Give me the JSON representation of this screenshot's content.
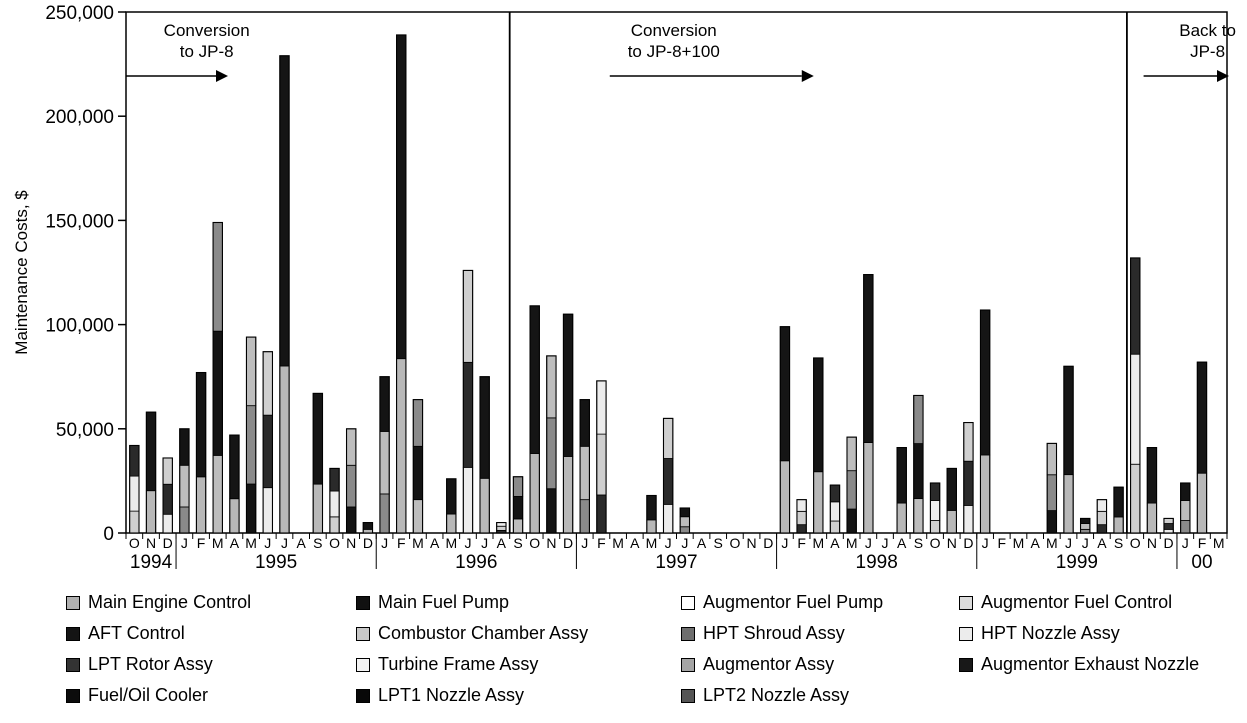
{
  "chart_data": {
    "type": "bar",
    "stacked": true,
    "ylabel": "Maintenance Costs, $",
    "ylim": [
      0,
      250000
    ],
    "yticks": [
      "0",
      "50,000",
      "100,000",
      "150,000",
      "200,000",
      "250,000"
    ],
    "grid": false,
    "month_labels": [
      "O",
      "N",
      "D",
      "J",
      "F",
      "M",
      "A",
      "M",
      "J",
      "J",
      "A",
      "S",
      "O",
      "N",
      "D",
      "J",
      "F",
      "M",
      "A",
      "M",
      "J",
      "J",
      "A",
      "S",
      "O",
      "N",
      "D",
      "J",
      "F",
      "M",
      "A",
      "M",
      "J",
      "J",
      "A",
      "S",
      "O",
      "N",
      "D",
      "J",
      "F",
      "M",
      "A",
      "M",
      "J",
      "J",
      "A",
      "S",
      "O",
      "N",
      "D",
      "J",
      "F",
      "M",
      "A",
      "M",
      "J",
      "J",
      "A",
      "S",
      "O",
      "N",
      "D",
      "J",
      "F",
      "M"
    ],
    "year_labels": [
      {
        "label": "1994",
        "start": 0,
        "end": 3
      },
      {
        "label": "1995",
        "start": 3,
        "end": 15
      },
      {
        "label": "1996",
        "start": 15,
        "end": 27
      },
      {
        "label": "1997",
        "start": 27,
        "end": 39
      },
      {
        "label": "1998",
        "start": 39,
        "end": 51
      },
      {
        "label": "1999",
        "start": 51,
        "end": 63
      },
      {
        "label": "00",
        "start": 63,
        "end": 66
      }
    ],
    "totals": [
      42000,
      58000,
      36000,
      50000,
      77000,
      149000,
      47000,
      94000,
      87000,
      229000,
      0,
      67000,
      31000,
      50000,
      5000,
      75000,
      239000,
      64000,
      0,
      26000,
      126000,
      75000,
      5000,
      27000,
      109000,
      85000,
      105000,
      64000,
      73000,
      0,
      0,
      18000,
      55000,
      12000,
      0,
      0,
      0,
      0,
      0,
      99000,
      16000,
      84000,
      23000,
      46000,
      124000,
      0,
      41000,
      66000,
      24000,
      31000,
      53000,
      107000,
      0,
      0,
      0,
      43000,
      80000,
      7000,
      16000,
      22000,
      132000,
      41000,
      7000,
      24000,
      82000,
      0
    ],
    "annotations": [
      {
        "text": [
          "Conversion",
          "to JP-8"
        ],
        "index": 1
      },
      {
        "text": [
          "Conversion",
          "to JP-8+100"
        ],
        "index": 29
      },
      {
        "text": [
          "Back to",
          "JP-8"
        ],
        "index": 61
      }
    ],
    "period_boundaries": [
      23,
      60
    ],
    "legend": [
      {
        "name": "Main Engine Control",
        "fill": "#b0b0b0"
      },
      {
        "name": "Main Fuel Pump",
        "fill": "#111111"
      },
      {
        "name": "Augmentor Fuel Pump",
        "fill": "#ffffff"
      },
      {
        "name": "Augmentor Fuel Control",
        "fill": "#dcdcdc"
      },
      {
        "name": "AFT Control",
        "fill": "#141414"
      },
      {
        "name": "Combustor Chamber Assy",
        "fill": "#c8c8c8"
      },
      {
        "name": "HPT Shroud Assy",
        "fill": "#6e6e6e"
      },
      {
        "name": "HPT Nozzle Assy",
        "fill": "#ececec"
      },
      {
        "name": "LPT Rotor Assy",
        "fill": "#333333"
      },
      {
        "name": "Turbine Frame Assy",
        "fill": "#f3f3f3"
      },
      {
        "name": "Augmentor Assy",
        "fill": "#a4a4a4"
      },
      {
        "name": "Augmentor Exhaust Nozzle",
        "fill": "#181818"
      },
      {
        "name": "Fuel/Oil Cooler",
        "fill": "#0c0c0c"
      },
      {
        "name": "LPT1 Nozzle Assy",
        "fill": "#080808"
      },
      {
        "name": "LPT2 Nozzle Assy",
        "fill": "#555555"
      }
    ]
  }
}
